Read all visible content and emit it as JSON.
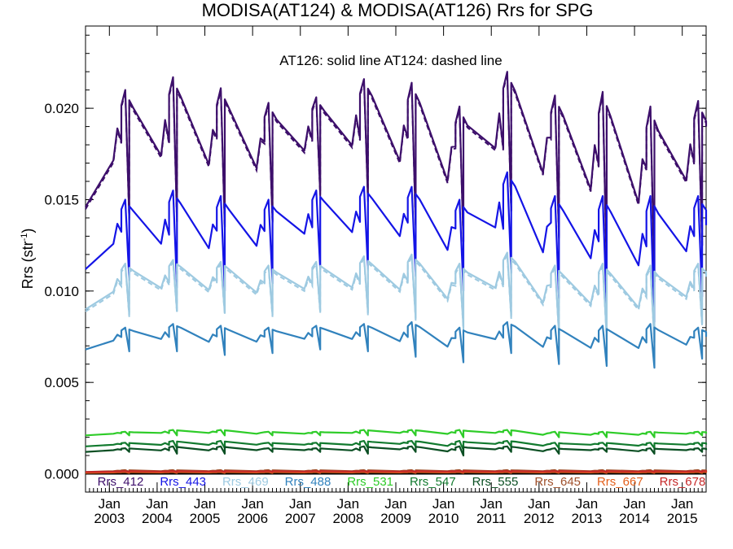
{
  "chart_data": {
    "type": "line",
    "title": "MODISA(AT124) & MODISA(AT126)  Rrs for SPG",
    "annotation": "AT126: solid line   AT124: dashed line",
    "xlabel": "",
    "ylabel_main": "Rrs (str",
    "ylabel_sup": "-1",
    "ylabel_end": ")",
    "ylim": [
      -0.001,
      0.0245
    ],
    "yticks": [
      "0.000",
      "0.005",
      "0.010",
      "0.015",
      "0.020"
    ],
    "xrange": [
      "2002-07",
      "2015-07"
    ],
    "xtick_month": "Jan",
    "xtick_years": [
      "2003",
      "2004",
      "2005",
      "2006",
      "2007",
      "2008",
      "2009",
      "2010",
      "2011",
      "2012",
      "2013",
      "2014",
      "2015"
    ],
    "grid": false,
    "legend_position": "bottom inside plot",
    "line_styles": {
      "AT126": "solid",
      "AT124": "dashed"
    },
    "series": [
      {
        "name": "Rrs_412",
        "color": "#3d0f6b",
        "dashed_at124": true,
        "peaks": [
          0.021,
          0.0217,
          0.0211,
          0.0203,
          0.0206,
          0.0216,
          0.0214,
          0.0201,
          0.022,
          0.0207,
          0.0209,
          0.0201,
          0.0204
        ],
        "troughs": [
          0.014,
          0.0139,
          0.0135,
          0.0138,
          0.0153,
          0.015,
          0.0136,
          0.0127,
          0.0144,
          0.013,
          0.0112,
          0.0105,
          0.0125
        ],
        "x_start": "2002-07",
        "start_value": 0.0146,
        "x_end": "2015-07",
        "end_value": 0.019
      },
      {
        "name": "Rrs_443",
        "color": "#1414e6",
        "dashed_at124": false,
        "peaks": [
          0.015,
          0.0155,
          0.0152,
          0.015,
          0.0155,
          0.0157,
          0.0157,
          0.015,
          0.0165,
          0.0152,
          0.0152,
          0.0152,
          0.0152
        ],
        "troughs": [
          0.0106,
          0.0102,
          0.01,
          0.0104,
          0.0112,
          0.0112,
          0.0108,
          0.01,
          0.011,
          0.0096,
          0.009,
          0.0083,
          0.0097
        ],
        "x_start": "2002-07",
        "start_value": 0.0112,
        "x_end": "2015-07",
        "end_value": 0.0136
      },
      {
        "name": "Rrs_469",
        "color": "#9ecae1",
        "dashed_at124": true,
        "peaks": [
          0.0115,
          0.0117,
          0.0116,
          0.0114,
          0.0116,
          0.0119,
          0.012,
          0.0115,
          0.0121,
          0.0114,
          0.0115,
          0.0114,
          0.0115
        ],
        "troughs": [
          0.0087,
          0.0089,
          0.0088,
          0.0087,
          0.0089,
          0.0088,
          0.0085,
          0.008,
          0.0086,
          0.0077,
          0.0075,
          0.0072,
          0.0082
        ],
        "x_start": "2002-07",
        "start_value": 0.009,
        "x_end": "2015-07",
        "end_value": 0.0109
      },
      {
        "name": "Rrs_488",
        "color": "#3182bd",
        "dashed_at124": false,
        "peaks": [
          0.008,
          0.0082,
          0.0081,
          0.008,
          0.0081,
          0.0082,
          0.0083,
          0.008,
          0.0083,
          0.0081,
          0.0081,
          0.0082,
          0.008
        ],
        "troughs": [
          0.0067,
          0.0067,
          0.0065,
          0.0066,
          0.0068,
          0.0067,
          0.0064,
          0.0061,
          0.0066,
          0.006,
          0.0059,
          0.0058,
          0.0063
        ],
        "x_start": "2002-07",
        "start_value": 0.0068,
        "x_end": "2015-07",
        "end_value": 0.0075
      },
      {
        "name": "Rrs_531",
        "color": "#2ecc28",
        "dashed_at124": false,
        "peaks": [
          0.0023,
          0.0024,
          0.0024,
          0.0023,
          0.0023,
          0.0024,
          0.0024,
          0.0024,
          0.0024,
          0.0023,
          0.0023,
          0.0023,
          0.0023
        ],
        "troughs": [
          0.0021,
          0.0021,
          0.0021,
          0.0021,
          0.0021,
          0.0021,
          0.0021,
          0.002,
          0.0021,
          0.002,
          0.002,
          0.002,
          0.0021
        ],
        "x_start": "2002-07",
        "start_value": 0.0021,
        "x_end": "2015-07",
        "end_value": 0.0022
      },
      {
        "name": "Rrs_547",
        "color": "#117a2e",
        "dashed_at124": false,
        "peaks": [
          0.0017,
          0.0018,
          0.0018,
          0.0017,
          0.0017,
          0.0018,
          0.0018,
          0.0018,
          0.0018,
          0.0017,
          0.0017,
          0.0017,
          0.0017
        ],
        "troughs": [
          0.0015,
          0.0014,
          0.0014,
          0.0015,
          0.0015,
          0.0014,
          0.0015,
          0.0013,
          0.0015,
          0.0014,
          0.0015,
          0.0014,
          0.0015
        ],
        "x_start": "2002-07",
        "start_value": 0.0015,
        "x_end": "2015-07",
        "end_value": 0.0016
      },
      {
        "name": "Rrs_555",
        "color": "#0b4f23",
        "dashed_at124": false,
        "peaks": [
          0.0014,
          0.0015,
          0.0015,
          0.0014,
          0.0014,
          0.0015,
          0.0015,
          0.0015,
          0.0015,
          0.0014,
          0.0014,
          0.0014,
          0.0014
        ],
        "troughs": [
          0.0012,
          0.0011,
          0.0011,
          0.0012,
          0.0012,
          0.0011,
          0.0012,
          0.001,
          0.0012,
          0.0011,
          0.0012,
          0.0011,
          0.0012
        ],
        "x_start": "2002-07",
        "start_value": 0.0012,
        "x_end": "2015-07",
        "end_value": 0.0013
      },
      {
        "name": "Rrs_645",
        "color": "#a0522d",
        "dashed_at124": false,
        "peaks": [
          0.0002,
          0.0002,
          0.0002,
          0.0002,
          0.0002,
          0.0002,
          0.0002,
          0.0002,
          0.0002,
          0.0002,
          0.0002,
          0.0002,
          0.0002
        ],
        "troughs": [
          0.0001,
          0.0001,
          0.0001,
          0.0001,
          0.0001,
          0.0001,
          0.0001,
          0.0001,
          0.0001,
          0.0001,
          0.0001,
          0.0001,
          0.0001
        ],
        "x_start": "2002-07",
        "start_value": 0.0001,
        "x_end": "2015-07",
        "end_value": 0.0001
      },
      {
        "name": "Rrs_667",
        "color": "#e4601b",
        "dashed_at124": false,
        "peaks": [
          0.0001,
          0.0001,
          0.0001,
          0.0001,
          0.0001,
          0.0001,
          0.0001,
          0.0001,
          0.0001,
          0.0001,
          0.0001,
          0.0001,
          0.0001
        ],
        "troughs": [
          5e-05,
          5e-05,
          5e-05,
          5e-05,
          5e-05,
          5e-05,
          5e-05,
          5e-05,
          5e-05,
          5e-05,
          5e-05,
          5e-05,
          5e-05
        ],
        "x_start": "2002-07",
        "start_value": 5e-05,
        "x_end": "2015-07",
        "end_value": 5e-05
      },
      {
        "name": "Rrs_678",
        "color": "#c62828",
        "dashed_at124": false,
        "peaks": [
          0.00015,
          0.00015,
          0.00015,
          0.00015,
          0.00015,
          0.00015,
          0.00015,
          0.00015,
          0.00015,
          0.00015,
          0.00015,
          0.00015,
          0.00015
        ],
        "troughs": [
          0.0001,
          0.0001,
          0.0001,
          0.0001,
          0.0001,
          0.0001,
          0.0001,
          0.0001,
          0.0001,
          0.0001,
          0.0001,
          0.0001,
          0.0001
        ],
        "x_start": "2002-07",
        "start_value": 0.0001,
        "x_end": "2015-07",
        "end_value": 0.0001
      }
    ]
  }
}
